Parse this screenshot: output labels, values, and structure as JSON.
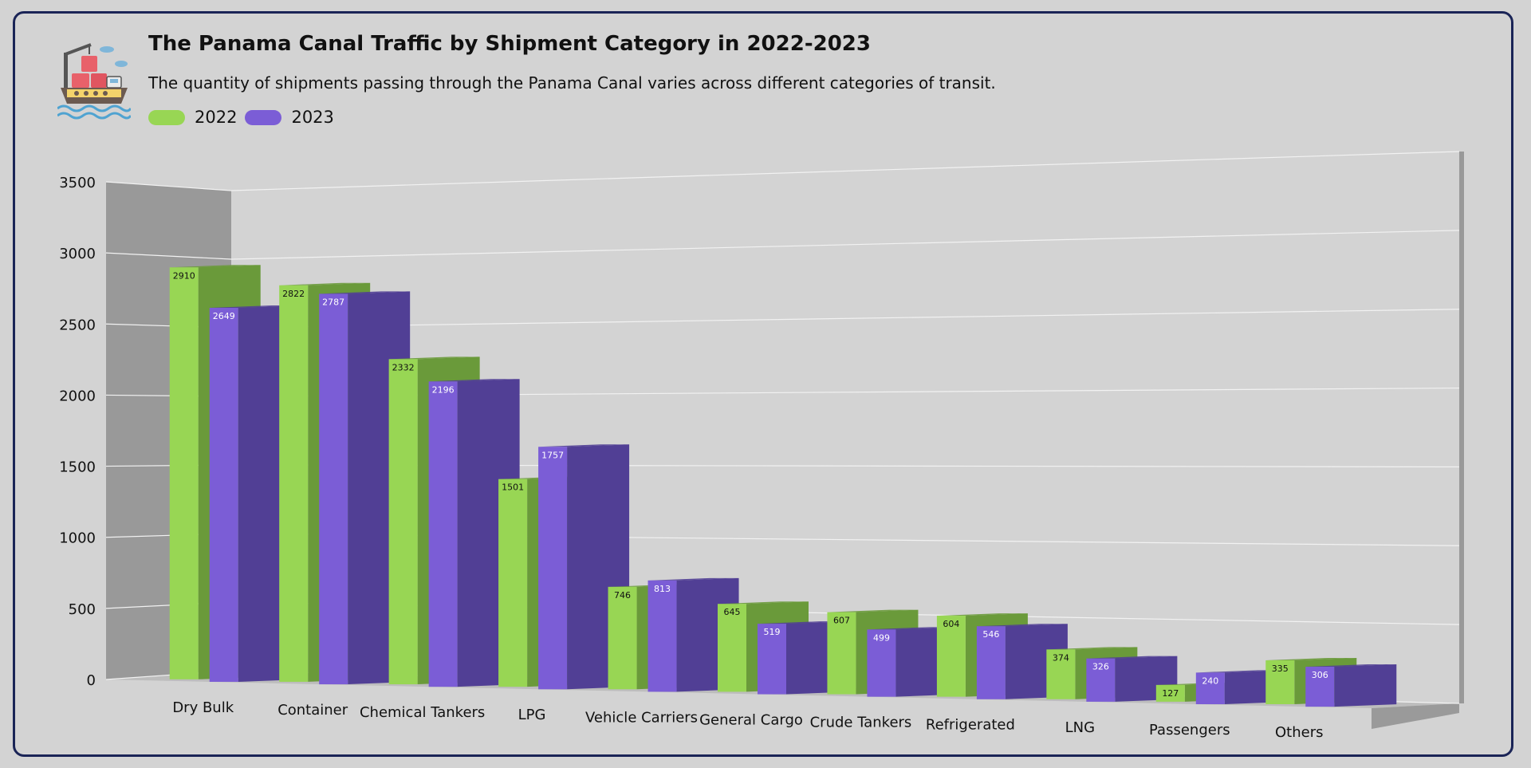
{
  "chart_data": {
    "type": "bar",
    "title": "The Panama Canal Traffic by Shipment Category in 2022-2023",
    "subtitle": "The quantity of shipments passing through the Panama Canal varies across different categories of transit.",
    "categories": [
      "Dry Bulk",
      "Container",
      "Chemical Tankers",
      "LPG",
      "Vehicle Carriers",
      "General Cargo",
      "Crude Tankers",
      "Refrigerated",
      "LNG",
      "Passengers",
      "Others"
    ],
    "series": [
      {
        "name": "2022",
        "color": "#98d654",
        "side_color": "#6a9a3a",
        "label_color": "#111111",
        "values": [
          2910,
          2822,
          2332,
          1501,
          746,
          645,
          607,
          604,
          374,
          127,
          335
        ]
      },
      {
        "name": "2023",
        "color": "#7b5dd6",
        "side_color": "#513f95",
        "label_color": "#ffffff",
        "values": [
          2649,
          2787,
          2196,
          1757,
          813,
          519,
          499,
          546,
          326,
          240,
          306
        ]
      }
    ],
    "yticks": [
      0,
      500,
      1000,
      1500,
      2000,
      2500,
      3000,
      3500
    ],
    "ylim": [
      0,
      3500
    ],
    "xlabel": "",
    "ylabel": "",
    "grid": true,
    "legend_position": "top-left"
  },
  "colors": {
    "border": "#1a2456",
    "background": "#d3d3d3",
    "left_wall": "#999999",
    "floor": "#bdbdbd",
    "gridline": "#f2f2f2"
  },
  "logo_icon": "cargo-ship-icon"
}
